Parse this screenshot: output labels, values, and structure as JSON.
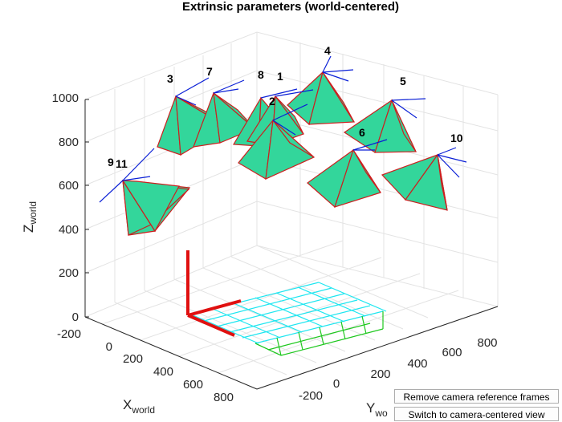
{
  "window": {
    "title": "Extrinsic parameters (world-centered)"
  },
  "axes": {
    "x_label": "X",
    "x_label_sub": "world",
    "y_label": "Y",
    "y_label_sub": "wo",
    "z_label": "Z",
    "z_label_sub": "world",
    "x_ticks": [
      "-200",
      "0",
      "200",
      "400",
      "600",
      "800"
    ],
    "y_ticks": [
      "-200",
      "0",
      "200",
      "400",
      "600",
      "800"
    ],
    "z_ticks": [
      "0",
      "200",
      "400",
      "600",
      "800",
      "1000"
    ]
  },
  "cameras": {
    "labels": [
      "1",
      "2",
      "3",
      "4",
      "5",
      "6",
      "7",
      "8",
      "9",
      "10",
      "11"
    ]
  },
  "colors": {
    "camera_face": "#33d69b",
    "camera_edge": "#cc1f1f",
    "camera_axes": "#0a1fd6",
    "world_axes": "#e01010",
    "grid_pattern": "#1ee6f0",
    "grid_pattern_near": "#1ec81e",
    "box_grid": "#e3e3e3"
  },
  "buttons": {
    "remove_frames": "Remove camera reference frames",
    "switch_view": "Switch to camera-centered view"
  }
}
